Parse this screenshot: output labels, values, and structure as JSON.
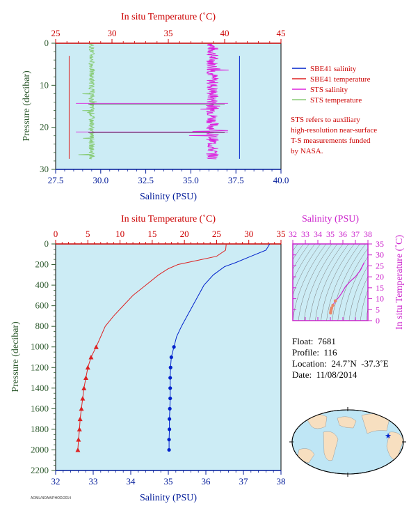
{
  "colors": {
    "plot_bg": "#ccecf5",
    "temp_axis": "#cc0000",
    "sal_axis": "#001a99",
    "pressure_axis": "#2e5a2e",
    "sbe_sal": "#0022cc",
    "sbe_temp": "#dd2222",
    "sts_sal": "#dd22dd",
    "sts_temp": "#88cc77",
    "ts_axis": "#cc22cc"
  },
  "legend": {
    "sbe_sal": "SBE41 salinity",
    "sbe_temp": "SBE41 temperature",
    "sts_sal": "STS salinity",
    "sts_temp": "STS temperature",
    "note": [
      "STS refers to auxiliary",
      "high-resolution near-surface",
      "T-S measurements funded",
      "by NASA."
    ]
  },
  "info": {
    "float": "Float:  7681",
    "profile": "Profile:  116",
    "location": "Location:  24.7˚N  -37.3˚E",
    "date": "Date:  11/08/2014"
  },
  "credit": "AOML/NOAA/PHOD/2014",
  "chart_data": [
    {
      "type": "line",
      "id": "near-surface",
      "top_axis_label": "In situ Temperature (˚C)",
      "bottom_axis_label": "Salinity (PSU)",
      "left_axis_label": "Pressure (decibar)",
      "temp_ticks": [
        "25",
        "30",
        "35",
        "40",
        "45"
      ],
      "sal_ticks": [
        "27.5",
        "30.0",
        "32.5",
        "35.0",
        "37.5",
        "40.0"
      ],
      "pressure_ticks": [
        "0",
        "10",
        "20",
        "30"
      ],
      "temp_lim": [
        25,
        45
      ],
      "sal_lim": [
        27.5,
        40
      ],
      "pressure_lim": [
        0,
        30
      ],
      "series": [
        {
          "key": "sbe_sal",
          "x": [
            37.7,
            37.7
          ],
          "y": [
            3,
            27.5
          ]
        },
        {
          "key": "sbe_temp",
          "x": [
            26.2,
            26.2
          ],
          "y": [
            3,
            27.5
          ]
        },
        {
          "key": "sts_sal",
          "approx_center": 36.2,
          "jitter": 0.35,
          "y_range": [
            0.2,
            27.5
          ]
        },
        {
          "key": "sts_temp",
          "approx_center": 28.2,
          "jitter": 0.25,
          "y_range": [
            0.2,
            27.5
          ]
        }
      ]
    },
    {
      "type": "line",
      "id": "full-profile",
      "top_axis_label": "In situ Temperature (˚C)",
      "bottom_axis_label": "Salinity (PSU)",
      "left_axis_label": "Pressure (decibar)",
      "temp_ticks": [
        "0",
        "5",
        "10",
        "15",
        "20",
        "25",
        "30",
        "35"
      ],
      "sal_ticks": [
        "32",
        "33",
        "34",
        "35",
        "36",
        "37",
        "38"
      ],
      "pressure_ticks": [
        "0",
        "200",
        "400",
        "600",
        "800",
        "1000",
        "1200",
        "1400",
        "1600",
        "1800",
        "2000",
        "2200"
      ],
      "temp_lim": [
        0,
        35
      ],
      "sal_lim": [
        32,
        38
      ],
      "pressure_lim": [
        0,
        2200
      ],
      "temperature": {
        "p": [
          0,
          60,
          120,
          160,
          200,
          240,
          300,
          400,
          500,
          600,
          700,
          800,
          900,
          1000,
          1100,
          1200,
          1300,
          1400,
          1500,
          1600,
          1700,
          1800,
          1900,
          2000
        ],
        "t": [
          26.5,
          26.4,
          25.0,
          22.0,
          19.0,
          17.5,
          16.0,
          14.0,
          12.0,
          10.5,
          9.0,
          7.7,
          7.0,
          6.3,
          5.5,
          5.0,
          4.7,
          4.4,
          4.2,
          4.0,
          3.8,
          3.7,
          3.55,
          3.45
        ]
      },
      "salinity": {
        "p": [
          0,
          60,
          120,
          180,
          220,
          300,
          400,
          500,
          600,
          700,
          800,
          900,
          1000,
          1100,
          1200,
          1300,
          1400,
          1500,
          1600,
          1700,
          1800,
          1900,
          2000
        ],
        "s": [
          37.7,
          37.6,
          37.2,
          36.8,
          36.5,
          36.2,
          35.95,
          35.8,
          35.65,
          35.5,
          35.35,
          35.22,
          35.15,
          35.08,
          35.06,
          35.05,
          35.05,
          35.05,
          35.04,
          35.03,
          35.03,
          35.02,
          35.02
        ]
      }
    },
    {
      "type": "scatter",
      "id": "ts-diagram",
      "top_axis_label": "Salinity (PSU)",
      "right_axis_label": "In situ Temperature (˚C)",
      "sal_ticks": [
        "32",
        "33",
        "34",
        "35",
        "36",
        "37",
        "38"
      ],
      "temp_ticks": [
        "0",
        "5",
        "10",
        "15",
        "20",
        "25",
        "30",
        "35"
      ],
      "sal_lim": [
        32,
        38
      ],
      "temp_lim": [
        0,
        35
      ],
      "curve_s": [
        35.02,
        35.04,
        35.06,
        35.1,
        35.2,
        35.4,
        35.65,
        35.9,
        36.2,
        36.6,
        37.0,
        37.4,
        37.7
      ],
      "curve_t": [
        3.5,
        4.2,
        5.0,
        5.8,
        7.0,
        9.0,
        10.5,
        12.5,
        15.5,
        18.0,
        20.0,
        23.0,
        26.5
      ]
    }
  ]
}
